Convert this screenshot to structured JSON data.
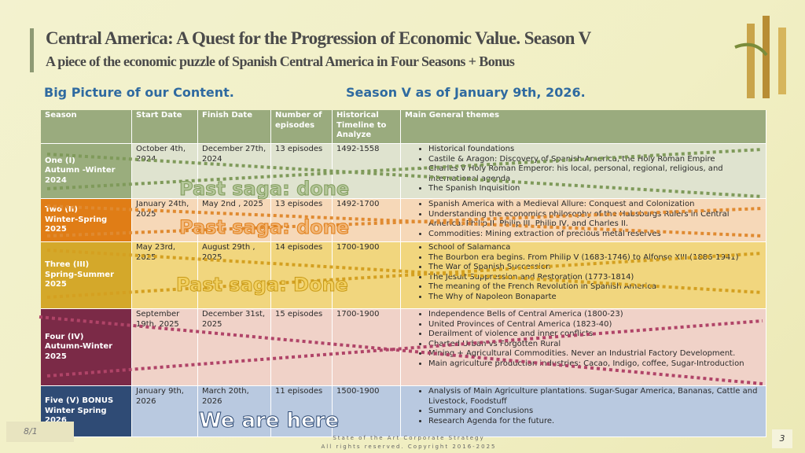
{
  "header": {
    "title": "Central America:  A Quest for the Progression of Economic Value. Season V",
    "subtitle": "A piece of the economic puzzle of Spanish Central America in Four Seasons + Bonus"
  },
  "headings": {
    "left": "Big Picture of our Content.",
    "right": "Season V as of January 9th, 2026."
  },
  "table": {
    "columns": [
      "Season",
      "Start Date",
      "Finish Date",
      "Number of episodes",
      "Historical Timeline to Analyze",
      "Main General themes"
    ],
    "rows": [
      {
        "season": [
          "One  (I)",
          "Autumn -Winter",
          "2024"
        ],
        "start": "October 4th, 2024",
        "finish": "December 27th, 2024",
        "episodes": "13 episodes",
        "timeline": "1492-1558",
        "themes": [
          "Historical foundations",
          "Castile & Aragon: Discovery of Spanish America, the Holy Roman Empire",
          "Charles V Holy Roman Emperor: his local, personal, regional, religious, and international agenda",
          "The Spanish Inquisition"
        ]
      },
      {
        "season": [
          "Two  (II)",
          "Winter-Spring",
          "2025"
        ],
        "start": "January 24th, 2025",
        "finish": "May 2nd , 2025",
        "episodes": "13 episodes",
        "timeline": "1492-1700",
        "themes": [
          "Spanish America with a Medieval Allure: Conquest and Colonization",
          "Understanding the economics philosophy of the Habsburgs Rulers in Central America: Philip II, Philip III, Philip IV, and Charles II.",
          "Commodities: Mining extraction of precious metal reserves"
        ]
      },
      {
        "season": [
          "Three  (III)",
          "Spring-Summer",
          "2025"
        ],
        "start": "May 23rd, 2025",
        "finish": "August 29th , 2025",
        "episodes": "14 episodes",
        "timeline": "1700-1900",
        "themes": [
          "School of Salamanca",
          "The Bourbon era begins. From Philip V (1683-1746) to Alfonso XIII (1886-1941)",
          "The War of Spanish Succession",
          "The Jesuit Suppression and Restoration (1773-1814)",
          "The meaning of the French Revolution in Spanish America",
          "The Why of Napoleon Bonaparte"
        ]
      },
      {
        "season": [
          "Four (IV)",
          "Autumn-Winter",
          "2025"
        ],
        "start": "September 19th, 2025",
        "finish": "December 31st, 2025",
        "episodes": "15 episodes",
        "timeline": "1700-1900",
        "themes": [
          "Independence Bells of Central America (1800-23)",
          "United Provinces of Central America (1823-40)",
          "Derailment of violence and inner conflicts",
          "Charted Urban vs Forgotten Rural",
          "Mining + Agricultural Commodities. Never an Industrial Factory Development.",
          "Main agriculture production industries: Cacao, Indigo, coffee, Sugar-Introduction"
        ]
      },
      {
        "season": [
          "Five (V) BONUS",
          "Winter Spring 2026"
        ],
        "start": "January 9th, 2026",
        "finish": "March 20th, 2026",
        "episodes": "11 episodes",
        "timeline": "1500-1900",
        "themes": [
          "Analysis of Main Agriculture plantations. Sugar-Sugar America, Bananas, Cattle and Livestock, Foodstuff",
          "Summary and Conclusions",
          "Research Agenda for the future."
        ]
      }
    ]
  },
  "overlays": [
    "Past saga: done",
    "Past saga: done",
    "Past saga: Done",
    "We are here"
  ],
  "footer": {
    "date": "8/1",
    "line1": "State of the Art Corporate Strategy",
    "line2": "All rights reserved. Copyright 2016-2025",
    "page": "3"
  }
}
